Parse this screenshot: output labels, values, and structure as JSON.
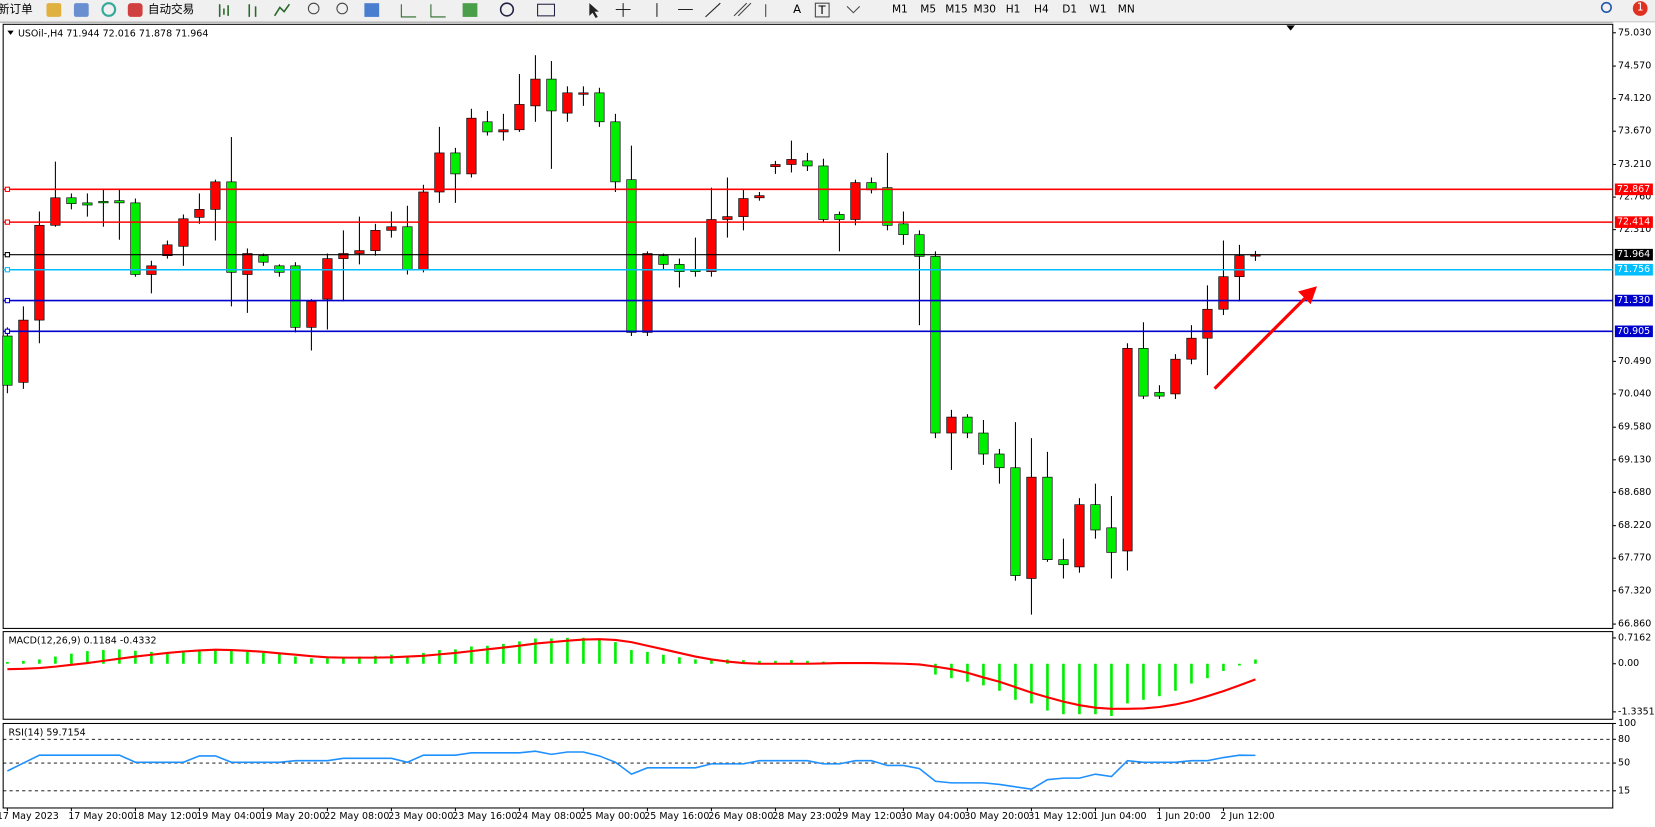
{
  "toolbar": {
    "new_order": "新订单",
    "auto_trading": "自动交易",
    "text_tool": "A",
    "label_tool": "T",
    "timeframes": [
      "M1",
      "M5",
      "M15",
      "M30",
      "H1",
      "H4",
      "D1",
      "W1",
      "MN"
    ],
    "badge": "1"
  },
  "chart_data": [
    {
      "type": "candlestick",
      "title": "USOil-,H4  71.944 72.016 71.878 71.964",
      "categories": [
        "17 May 2023",
        null,
        null,
        null,
        "17 May 20:00",
        null,
        null,
        null,
        "18 May 12:00",
        null,
        null,
        null,
        "19 May 04:00",
        null,
        null,
        null,
        "19 May 20:00",
        null,
        null,
        null,
        "22 May 08:00",
        null,
        null,
        null,
        "23 May 00:00",
        null,
        null,
        null,
        "23 May 16:00",
        null,
        null,
        null,
        "24 May 08:00",
        null,
        null,
        null,
        "25 May 00:00",
        null,
        null,
        null,
        "25 May 16:00",
        null,
        null,
        null,
        "26 May 08:00",
        null,
        null,
        null,
        "28 May 23:00",
        null,
        null,
        null,
        "29 May 12:00",
        null,
        null,
        null,
        "30 May 04:00",
        null,
        null,
        null,
        "30 May 20:00",
        null,
        null,
        null,
        "31 May 12:00",
        null,
        null,
        null,
        "1 Jun 04:00",
        null,
        null,
        null,
        "1 Jun 20:00",
        null,
        null,
        null,
        "2 Jun 12:00",
        null,
        null
      ],
      "open": [
        70.84,
        70.2,
        71.06,
        72.37,
        72.75,
        72.68,
        72.7,
        72.71,
        72.68,
        71.69,
        71.95,
        72.08,
        72.48,
        72.59,
        72.97,
        71.69,
        71.95,
        71.81,
        71.81,
        70.96,
        71.35,
        71.91,
        71.98,
        72.02,
        72.3,
        72.35,
        71.76,
        72.83,
        73.37,
        73.08,
        73.8,
        73.66,
        73.69,
        74.02,
        74.39,
        73.92,
        74.18,
        74.2,
        73.8,
        73.0,
        70.89,
        71.95,
        71.83,
        71.76,
        71.73,
        72.45,
        72.49,
        72.75,
        73.18,
        73.21,
        73.26,
        73.19,
        72.52,
        72.45,
        72.96,
        72.89,
        72.39,
        72.24,
        71.94,
        69.5,
        69.72,
        69.5,
        69.21,
        69.02,
        67.49,
        68.89,
        67.75,
        67.65,
        68.51,
        68.19,
        67.87,
        70.67,
        70.06,
        70.04,
        70.52,
        70.81,
        71.21,
        71.66,
        71.944
      ],
      "high": [
        70.96,
        71.25,
        72.56,
        73.25,
        72.81,
        72.81,
        72.86,
        72.86,
        72.74,
        71.88,
        72.16,
        72.52,
        72.81,
        73.0,
        73.59,
        72.05,
        71.98,
        71.83,
        71.86,
        71.35,
        71.98,
        72.3,
        72.49,
        72.39,
        72.56,
        72.64,
        72.93,
        73.73,
        73.44,
        73.98,
        73.95,
        73.91,
        74.46,
        74.72,
        74.64,
        74.29,
        74.29,
        74.27,
        73.91,
        73.47,
        72.01,
        71.98,
        71.91,
        72.2,
        72.89,
        73.03,
        72.86,
        72.83,
        73.26,
        73.54,
        73.37,
        73.29,
        72.56,
        73.0,
        73.03,
        73.37,
        72.56,
        72.3,
        72.01,
        69.82,
        69.76,
        69.68,
        69.28,
        69.65,
        69.43,
        69.24,
        68.04,
        68.6,
        68.8,
        68.63,
        70.74,
        71.03,
        70.16,
        70.59,
        70.99,
        71.54,
        72.16,
        72.1,
        72.016
      ],
      "low": [
        70.05,
        70.11,
        70.74,
        72.35,
        72.59,
        72.49,
        72.35,
        72.17,
        71.66,
        71.43,
        71.91,
        71.81,
        72.39,
        72.16,
        71.25,
        71.16,
        71.81,
        71.66,
        70.89,
        70.64,
        70.93,
        71.32,
        71.83,
        71.95,
        72.2,
        71.69,
        71.72,
        72.68,
        72.68,
        73.03,
        73.61,
        73.54,
        73.66,
        73.8,
        73.15,
        73.8,
        74.02,
        73.73,
        72.83,
        70.84,
        70.84,
        71.76,
        71.51,
        71.66,
        71.66,
        72.2,
        72.3,
        72.71,
        73.08,
        73.1,
        73.12,
        72.42,
        72.01,
        72.37,
        72.81,
        72.3,
        72.1,
        70.99,
        69.43,
        68.99,
        69.43,
        69.06,
        68.8,
        67.46,
        66.99,
        67.72,
        67.49,
        67.57,
        68.04,
        67.49,
        67.6,
        69.97,
        69.97,
        69.97,
        70.45,
        70.3,
        71.13,
        71.32,
        71.878
      ],
      "close": [
        70.16,
        71.06,
        72.37,
        72.75,
        72.67,
        72.65,
        72.68,
        72.68,
        71.69,
        71.81,
        72.1,
        72.46,
        72.59,
        72.97,
        71.72,
        71.98,
        71.86,
        71.72,
        70.96,
        71.32,
        71.91,
        71.98,
        72.02,
        72.3,
        72.35,
        71.76,
        72.83,
        73.37,
        73.08,
        73.85,
        73.66,
        73.69,
        74.04,
        74.39,
        73.95,
        74.2,
        74.2,
        73.8,
        72.97,
        70.89,
        71.98,
        71.83,
        71.73,
        71.73,
        72.45,
        72.49,
        72.74,
        72.78,
        73.21,
        73.28,
        73.19,
        72.45,
        72.45,
        72.96,
        72.86,
        72.37,
        72.24,
        71.94,
        69.5,
        69.72,
        69.5,
        69.21,
        69.02,
        67.53,
        68.89,
        67.75,
        67.68,
        68.51,
        68.16,
        67.85,
        70.67,
        70.01,
        70.01,
        70.52,
        70.81,
        71.21,
        71.66,
        71.95,
        71.964
      ],
      "up_color": "#ff0000",
      "down_color": "#00ee00",
      "ylim": [
        66.8,
        75.147
      ],
      "yticks": [
        {
          "value": 75.03,
          "label": "75.030"
        },
        {
          "value": 74.57,
          "label": "74.570"
        },
        {
          "value": 74.12,
          "label": "74.120"
        },
        {
          "value": 73.67,
          "label": "73.670"
        },
        {
          "value": 73.21,
          "label": "73.210"
        },
        {
          "value": 72.76,
          "label": "72.760"
        },
        {
          "value": 72.31,
          "label": "72.310"
        },
        {
          "value": 70.49,
          "label": "70.490"
        },
        {
          "value": 70.04,
          "label": "70.040"
        },
        {
          "value": 69.58,
          "label": "69.580"
        },
        {
          "value": 69.13,
          "label": "69.130"
        },
        {
          "value": 68.68,
          "label": "68.680"
        },
        {
          "value": 68.22,
          "label": "68.220"
        },
        {
          "value": 67.77,
          "label": "67.770"
        },
        {
          "value": 67.32,
          "label": "67.320"
        },
        {
          "value": 66.86,
          "label": "66.860"
        }
      ],
      "hlines": [
        {
          "value": 72.867,
          "label": "72.867",
          "color": "#ff0000"
        },
        {
          "value": 72.414,
          "label": "72.414",
          "color": "#ff0000"
        },
        {
          "value": 71.964,
          "label": "71.964",
          "color": "#000000"
        },
        {
          "value": 71.756,
          "label": "71.756",
          "color": "#00bfff"
        },
        {
          "value": 71.33,
          "label": "71.330",
          "color": "#0000cd"
        },
        {
          "value": 70.905,
          "label": "70.905",
          "color": "#0000cd"
        }
      ]
    },
    {
      "type": "macd",
      "title": "MACD(12,26,9) 0.1184 -0.4332",
      "series": [
        {
          "style": "histogram",
          "color": "#00ee00",
          "values": [
            0.05,
            0.08,
            0.12,
            0.2,
            0.28,
            0.35,
            0.38,
            0.4,
            0.36,
            0.33,
            0.32,
            0.33,
            0.36,
            0.4,
            0.38,
            0.33,
            0.3,
            0.27,
            0.2,
            0.15,
            0.15,
            0.18,
            0.2,
            0.22,
            0.25,
            0.22,
            0.3,
            0.38,
            0.4,
            0.48,
            0.5,
            0.55,
            0.62,
            0.7,
            0.7,
            0.72,
            0.72,
            0.68,
            0.6,
            0.38,
            0.33,
            0.25,
            0.18,
            0.12,
            0.12,
            0.12,
            0.1,
            0.08,
            0.08,
            0.1,
            0.08,
            0.06,
            0.02,
            0.03,
            0.02,
            0.0,
            -0.02,
            -0.05,
            -0.3,
            -0.4,
            -0.5,
            -0.6,
            -0.75,
            -1.0,
            -1.1,
            -1.3,
            -1.4,
            -1.4,
            -1.4,
            -1.45,
            -1.1,
            -1.0,
            -0.9,
            -0.75,
            -0.55,
            -0.4,
            -0.2,
            -0.05,
            0.1184
          ]
        },
        {
          "style": "line",
          "color": "#ff0000",
          "values": [
            -0.15,
            -0.14,
            -0.12,
            -0.08,
            -0.03,
            0.02,
            0.08,
            0.14,
            0.2,
            0.25,
            0.3,
            0.34,
            0.37,
            0.39,
            0.38,
            0.36,
            0.33,
            0.29,
            0.25,
            0.21,
            0.18,
            0.17,
            0.17,
            0.17,
            0.18,
            0.2,
            0.22,
            0.26,
            0.3,
            0.35,
            0.4,
            0.45,
            0.5,
            0.56,
            0.6,
            0.64,
            0.67,
            0.68,
            0.66,
            0.6,
            0.5,
            0.4,
            0.3,
            0.2,
            0.12,
            0.06,
            0.02,
            0.0,
            0.0,
            0.0,
            0.0,
            0.01,
            0.02,
            0.02,
            0.02,
            0.01,
            0.0,
            -0.02,
            -0.08,
            -0.15,
            -0.25,
            -0.38,
            -0.5,
            -0.65,
            -0.8,
            -0.93,
            -1.05,
            -1.15,
            -1.22,
            -1.25,
            -1.25,
            -1.24,
            -1.2,
            -1.13,
            -1.03,
            -0.9,
            -0.76,
            -0.6,
            -0.4332
          ]
        }
      ],
      "ylim": [
        -1.54,
        0.892
      ],
      "yticks": [
        0.7162,
        {
          "value": 0,
          "label": "0.00"
        },
        -1.3351
      ]
    },
    {
      "type": "line",
      "title": "RSI(14) 59.7154",
      "color": "#1e90ff",
      "values": [
        40,
        50,
        60,
        60,
        60,
        60,
        60,
        60,
        51,
        51,
        51,
        51,
        59,
        59,
        51,
        51,
        51,
        51,
        53,
        53,
        53,
        56,
        56,
        56,
        56,
        51,
        60,
        60,
        60,
        63,
        63,
        63,
        63,
        65,
        61,
        64,
        64,
        59,
        51,
        36,
        44,
        44,
        44,
        44,
        49,
        49,
        49,
        53,
        53,
        53,
        53,
        49,
        49,
        53,
        53,
        47,
        47,
        43,
        27,
        25,
        25,
        25,
        23,
        20,
        17,
        29,
        31,
        31,
        36,
        33,
        53,
        51,
        51,
        51,
        53,
        53,
        57,
        60,
        59.7154
      ],
      "ylim": [
        -6.7,
        100
      ],
      "yticks": [
        100,
        80,
        50,
        15
      ],
      "grid": "dashed"
    }
  ]
}
